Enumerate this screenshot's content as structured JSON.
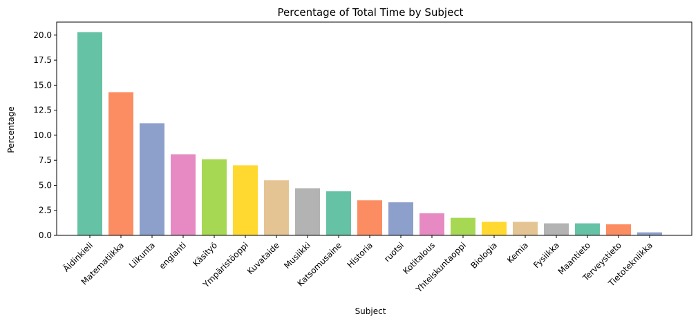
{
  "chart_data": {
    "type": "bar",
    "title": "Percentage of Total Time by Subject",
    "xlabel": "Subject",
    "ylabel": "Percentage",
    "ylim": [
      0,
      21.3
    ],
    "yticks": [
      "0.0",
      "2.5",
      "5.0",
      "7.5",
      "10.0",
      "12.5",
      "15.0",
      "17.5",
      "20.0"
    ],
    "grid": false,
    "categories": [
      "Äidinkieli",
      "Matematiikka",
      "Liikunta",
      "englanti",
      "Käsityö",
      "Ympäristöoppi",
      "Kuvataide",
      "Musiikki",
      "Katsomusaine",
      "Historia",
      "ruotsi",
      "Kotitalous",
      "Yhteiskuntaoppi",
      "Biologia",
      "Kemia",
      "Fysiikka",
      "Maantieto",
      "Terveystieto",
      "Tietotekniikka"
    ],
    "values": [
      20.3,
      14.3,
      11.2,
      8.1,
      7.6,
      7.0,
      5.5,
      4.7,
      4.4,
      3.5,
      3.3,
      2.2,
      1.75,
      1.35,
      1.35,
      1.2,
      1.2,
      1.1,
      0.3
    ],
    "colors": [
      "#66c2a5",
      "#fc8d62",
      "#8da0cb",
      "#e78ac3",
      "#a6d854",
      "#ffd92f",
      "#e5c494",
      "#b3b3b3"
    ]
  }
}
